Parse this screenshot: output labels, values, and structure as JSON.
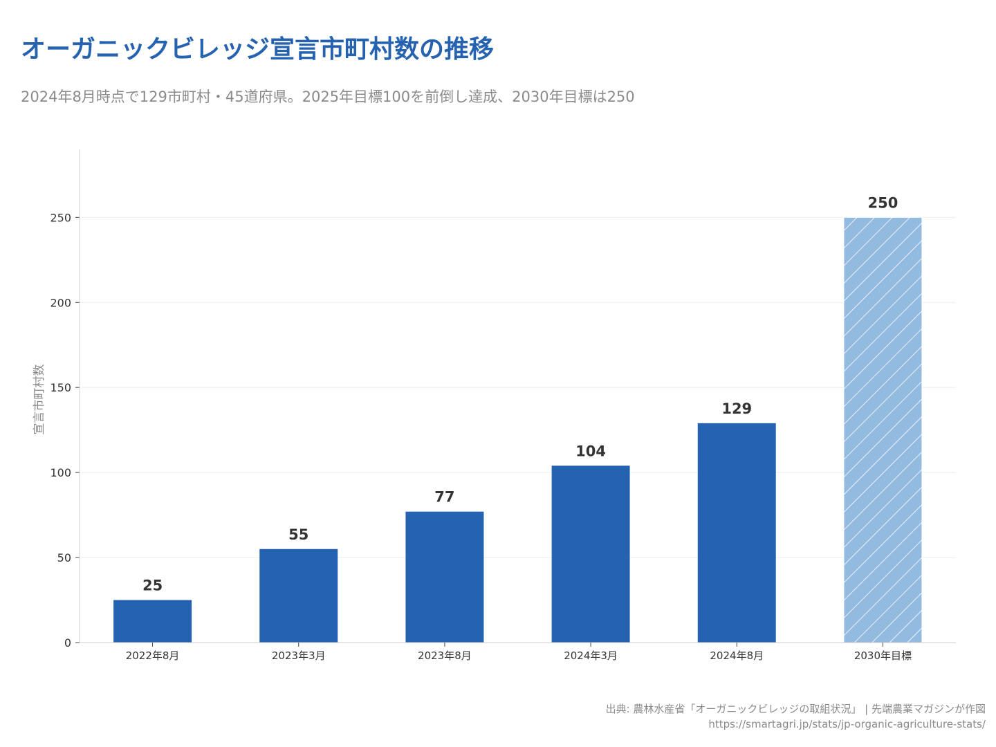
{
  "header": {
    "title": "オーガニックビレッジ宣言市町村数の推移",
    "subtitle": "2024年8月時点で129市町村・45道府県。2025年目標100を前倒し達成、2030年目標は250"
  },
  "footer": {
    "source": "出典: 農林水産省「オーガニックビレッジの取組状況」 | 先端農業マガジンが作図",
    "url": "https://smartagri.jp/stats/jp-organic-agriculture-stats/"
  },
  "colors": {
    "bar": "#2563b0",
    "target_bar": "#93badf",
    "grid": "#eeeeee",
    "axis": "#cccccc",
    "label": "#333333",
    "muted": "#8a8a8a"
  },
  "chart_data": {
    "type": "bar",
    "title": "オーガニックビレッジ宣言市町村数の推移",
    "xlabel": "",
    "ylabel": "宣言市町村数",
    "categories": [
      "2022年8月",
      "2023年3月",
      "2023年8月",
      "2024年3月",
      "2024年8月",
      "2030年目標"
    ],
    "values": [
      25,
      55,
      77,
      104,
      129,
      250
    ],
    "value_labels": [
      "25",
      "55",
      "77",
      "104",
      "129",
      "250"
    ],
    "target_flags": [
      false,
      false,
      false,
      false,
      false,
      true
    ],
    "ylim": [
      0,
      290
    ],
    "yticks": [
      0,
      50,
      100,
      150,
      200,
      250
    ],
    "ytick_labels": [
      "0",
      "50",
      "100",
      "150",
      "200",
      "250"
    ],
    "grid": true
  }
}
